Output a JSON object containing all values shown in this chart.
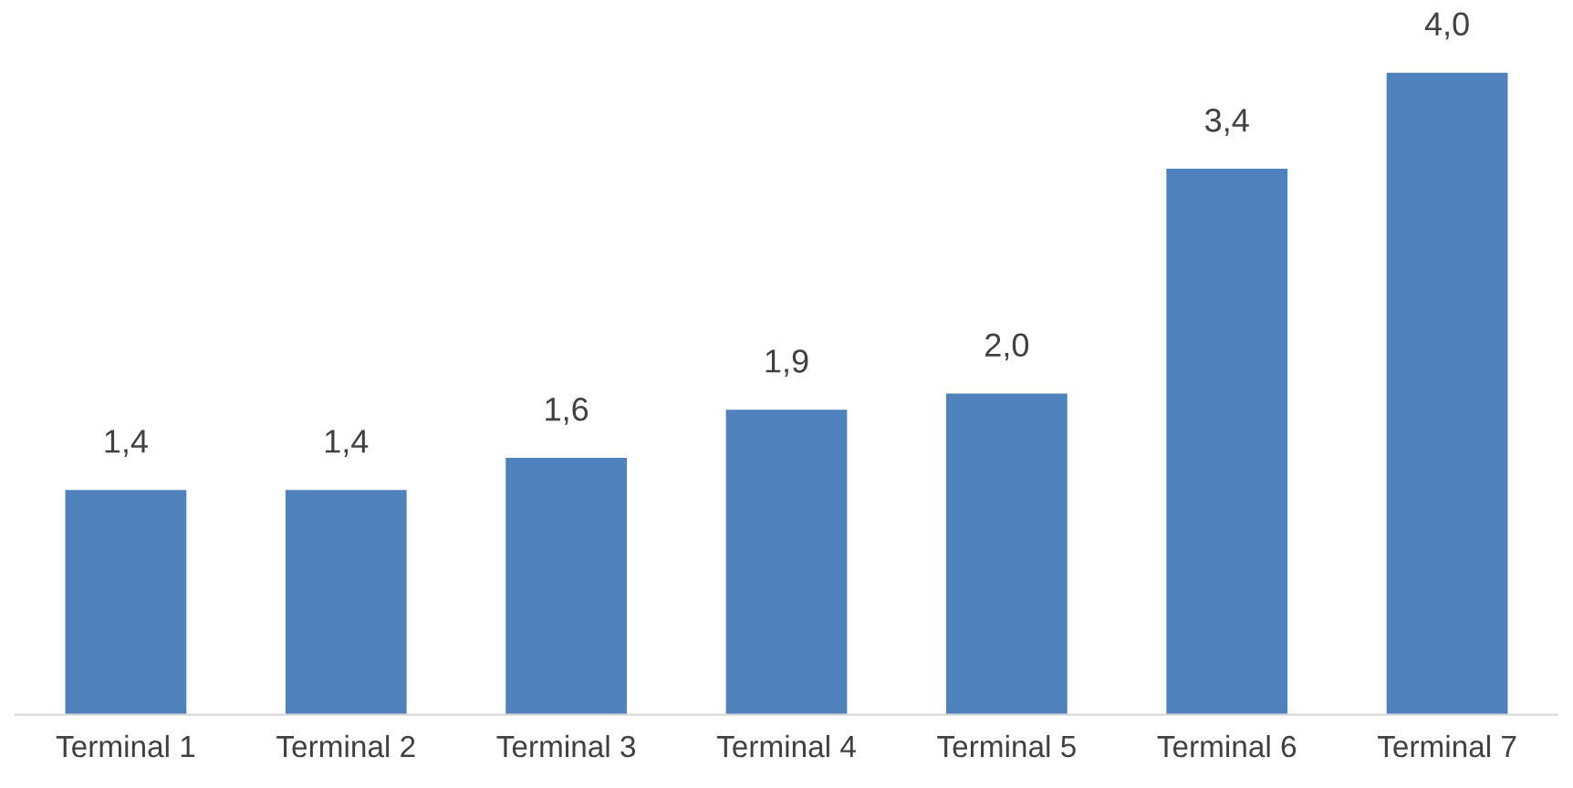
{
  "chart_data": {
    "type": "bar",
    "categories": [
      "Terminal 1",
      "Terminal 2",
      "Terminal 3",
      "Terminal 4",
      "Terminal 5",
      "Terminal 6",
      "Terminal 7"
    ],
    "values": [
      1.4,
      1.4,
      1.6,
      1.9,
      2.0,
      3.4,
      4.0
    ],
    "value_labels": [
      "1,4",
      "1,4",
      "1,6",
      "1,9",
      "2,0",
      "3,4",
      "4,0"
    ],
    "color": "#4f81bd",
    "ylim": [
      0,
      4
    ],
    "tick_labels": "x",
    "grid": false,
    "legend": false
  }
}
